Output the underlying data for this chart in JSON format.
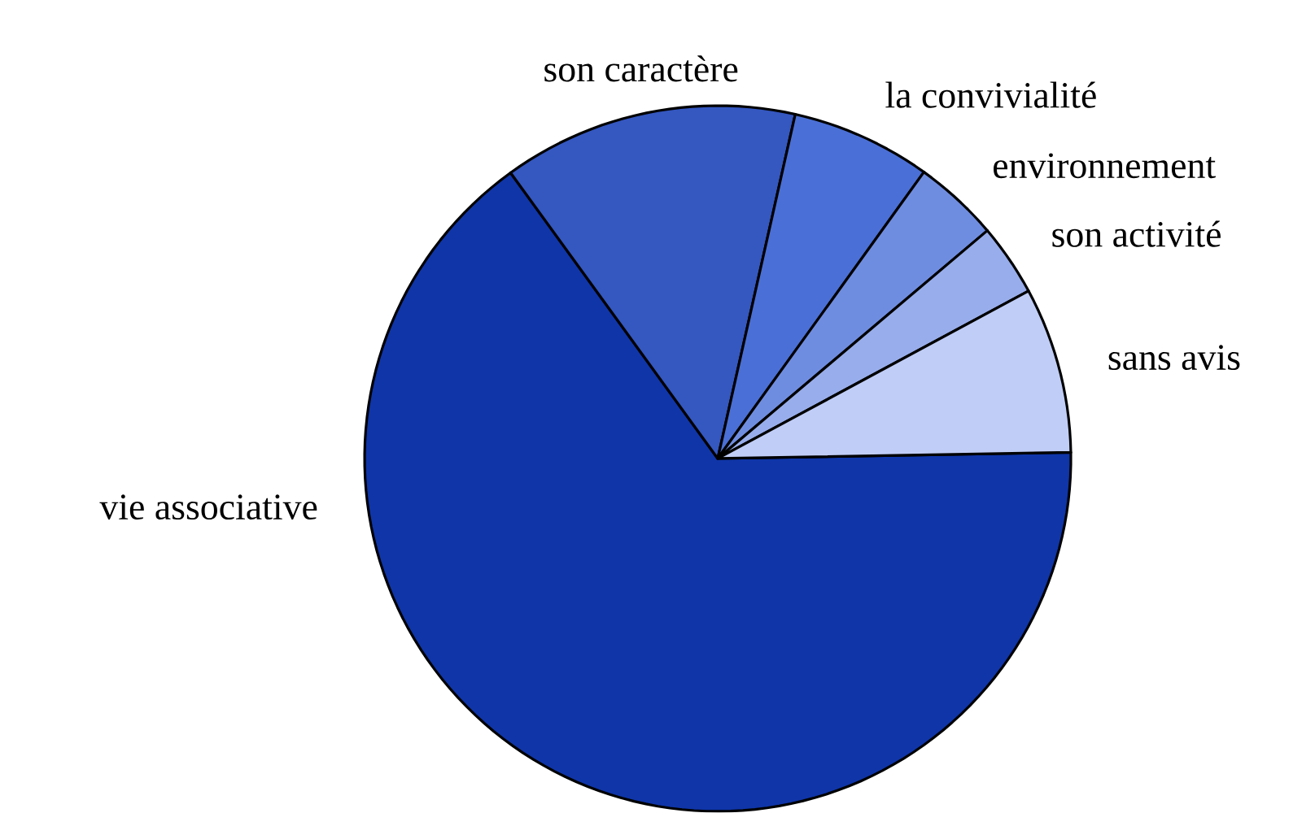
{
  "chart_data": {
    "type": "pie",
    "categories": [
      "vie associative",
      "son caractère",
      "la convivialité",
      "environnement",
      "son activité",
      "sans avis"
    ],
    "values": [
      65.3,
      13.5,
      6.4,
      3.9,
      3.3,
      7.6
    ],
    "colors": [
      "#0f35a8",
      "#3457c0",
      "#4a6fd6",
      "#6f8de0",
      "#98adeb",
      "#c0cdf7"
    ]
  }
}
